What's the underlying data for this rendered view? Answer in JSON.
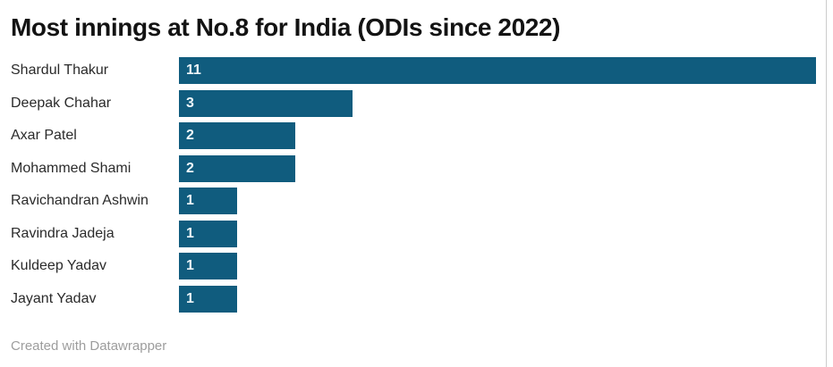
{
  "header": {
    "title": "Most innings at No.8 for India (ODIs since 2022)"
  },
  "footer": {
    "credit": "Created with Datawrapper"
  },
  "colors": {
    "bar": "#105c7e",
    "bar_value_text": "#eef6f9",
    "title_text": "#131313",
    "category_text": "#2b2b2b",
    "footer_text": "#9d9d9d",
    "frame_right_border": "#cccccc"
  },
  "chart_data": {
    "type": "bar",
    "orientation": "horizontal",
    "title": "Most innings at No.8 for India (ODIs since 2022)",
    "categories": [
      "Shardul Thakur",
      "Deepak Chahar",
      "Axar Patel",
      "Mohammed Shami",
      "Ravichandran Ashwin",
      "Ravindra Jadeja",
      "Kuldeep Yadav",
      "Jayant Yadav"
    ],
    "values": [
      11,
      3,
      2,
      2,
      1,
      1,
      1,
      1
    ],
    "value_labels": "inside-left",
    "xlim": [
      0,
      11
    ],
    "grid": false,
    "legend": false,
    "xlabel": "",
    "ylabel": ""
  }
}
